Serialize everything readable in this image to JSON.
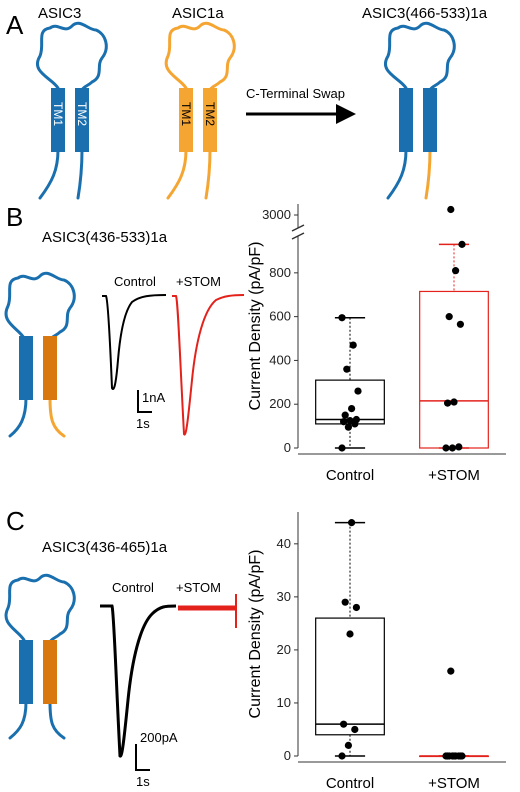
{
  "colors": {
    "asic3_blue": "#1a6fae",
    "asic1a_orange": "#f5a531",
    "asic1a_dark_orange": "#d9780f",
    "control_black": "#000000",
    "stom_red": "#e3221c"
  },
  "panel_a": {
    "letter": "A",
    "channel1": "ASIC3",
    "channel2": "ASIC1a",
    "tm1": "TM1",
    "tm2": "TM2",
    "swap_label": "C-Terminal Swap",
    "result": "ASIC3(466-533)1a"
  },
  "panel_b": {
    "letter": "B",
    "construct": "ASIC3(436-533)1a",
    "trace_control": "Control",
    "trace_stom": "+STOM",
    "scale_current": "1nA",
    "scale_time": "1s"
  },
  "panel_c": {
    "letter": "C",
    "construct": "ASIC3(436-465)1a",
    "trace_control": "Control",
    "trace_stom": "+STOM",
    "scale_current": "200pA",
    "scale_time": "1s"
  },
  "chart_data": [
    {
      "type": "box",
      "ylabel": "Current Density (pA/pF)",
      "axis_break": true,
      "lower_range": [
        0,
        950
      ],
      "upper_range": [
        2900,
        3100
      ],
      "yticks": [
        0,
        200,
        400,
        600,
        800
      ],
      "yticks_upper": [
        3000
      ],
      "categories": [
        "Control",
        "+STOM"
      ],
      "series": [
        {
          "category": "Control",
          "color": "#000000",
          "whisker_low": 0,
          "q1": 110,
          "median": 130,
          "q3": 310,
          "whisker_high": 595,
          "points": [
            0,
            95,
            110,
            120,
            125,
            130,
            150,
            180,
            260,
            360,
            470,
            595
          ]
        },
        {
          "category": "+STOM",
          "color": "#e3221c",
          "whisker_low": 0,
          "q1": 0,
          "median": 215,
          "q3": 715,
          "whisker_high": 930,
          "points": [
            0,
            0,
            5,
            205,
            210,
            565,
            600,
            810,
            930,
            3050
          ]
        }
      ]
    },
    {
      "type": "box",
      "ylabel": "Current Density (pA/pF)",
      "ylim": [
        0,
        46
      ],
      "yticks": [
        0,
        10,
        20,
        30,
        40
      ],
      "categories": [
        "Control",
        "+STOM"
      ],
      "series": [
        {
          "category": "Control",
          "color": "#000000",
          "whisker_low": 0,
          "q1": 4,
          "median": 6,
          "q3": 26,
          "whisker_high": 44,
          "points": [
            0,
            2,
            5,
            6,
            23,
            28,
            29,
            44
          ]
        },
        {
          "category": "+STOM",
          "color": "#e3221c",
          "whisker_low": 0,
          "q1": 0,
          "median": 0,
          "q3": 0,
          "whisker_high": 0,
          "points": [
            0,
            0,
            0,
            0,
            0,
            0,
            0,
            0,
            0,
            16
          ]
        }
      ]
    }
  ]
}
